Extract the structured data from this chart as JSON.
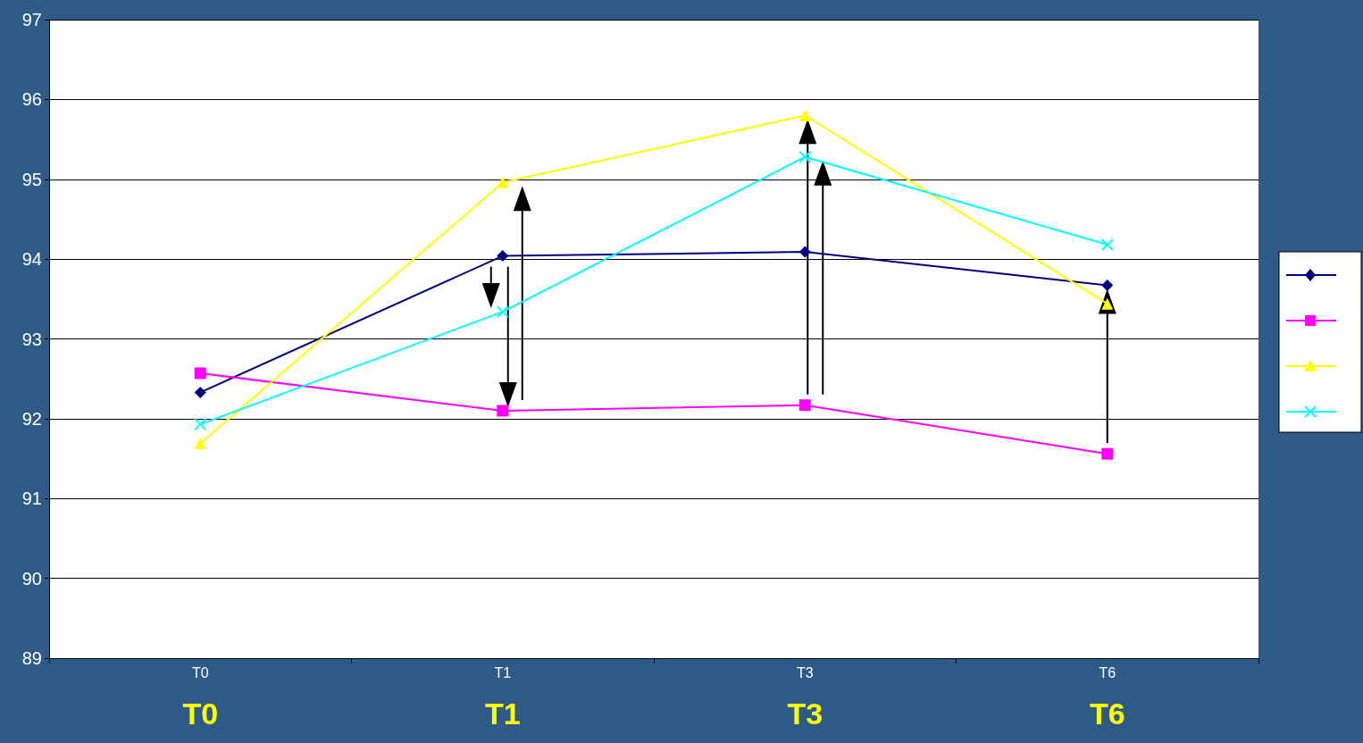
{
  "chart_data": {
    "type": "line",
    "categories": [
      "T0",
      "T1",
      "T3",
      "T6"
    ],
    "series": [
      {
        "color": "#000080",
        "marker": "diamond",
        "values": [
          92.33,
          94.04,
          94.09,
          93.67
        ]
      },
      {
        "color": "#ff00ff",
        "marker": "square",
        "values": [
          92.57,
          92.1,
          92.17,
          91.56
        ]
      },
      {
        "color": "#ffff00",
        "marker": "triangle",
        "values": [
          91.69,
          94.96,
          95.8,
          93.44
        ]
      },
      {
        "color": "#00ffff",
        "marker": "cross",
        "values": [
          91.93,
          93.34,
          95.28,
          94.18
        ]
      }
    ],
    "ylim": [
      89,
      97
    ],
    "yticks": [
      89,
      90,
      91,
      92,
      93,
      94,
      95,
      96,
      97
    ],
    "grid": "y",
    "annotations": [
      "T0",
      "T1",
      "T3",
      "T6"
    ]
  }
}
